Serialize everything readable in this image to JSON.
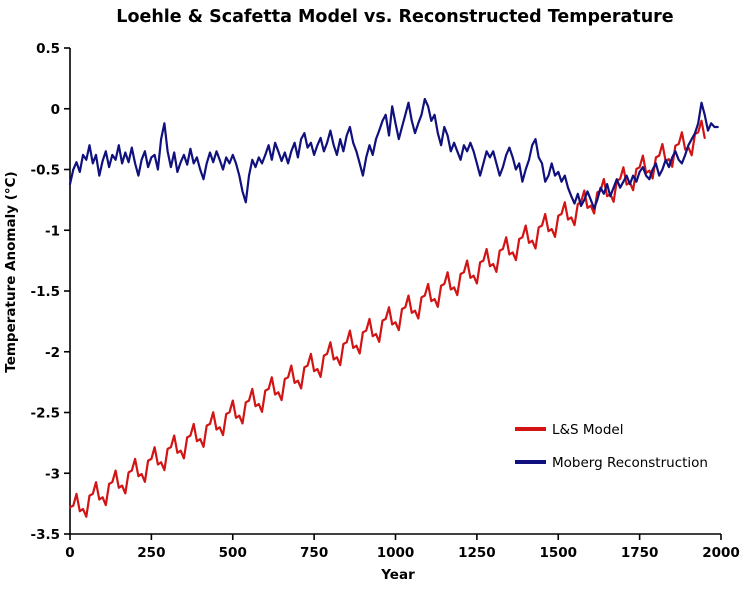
{
  "chart_data": {
    "type": "line",
    "title": "Loehle & Scafetta Model vs. Reconstructed Temperature",
    "xlabel": "Year",
    "ylabel": "Temperature Anomaly (°C)",
    "xlim": [
      0,
      2000
    ],
    "ylim": [
      -3.5,
      0.5
    ],
    "grid": false,
    "background": "#ffffff",
    "axis_color": "#000000",
    "xticks": [
      {
        "v": 0,
        "label": "0"
      },
      {
        "v": 250,
        "label": "250"
      },
      {
        "v": 500,
        "label": "500"
      },
      {
        "v": 750,
        "label": "750"
      },
      {
        "v": 1000,
        "label": "1000"
      },
      {
        "v": 1250,
        "label": "1250"
      },
      {
        "v": 1500,
        "label": "1500"
      },
      {
        "v": 1750,
        "label": "1750"
      },
      {
        "v": 2000,
        "label": "2000"
      }
    ],
    "yticks": [
      {
        "v": 0.5,
        "label": "0.5"
      },
      {
        "v": 0,
        "label": "0"
      },
      {
        "v": -0.5,
        "label": "-0.5"
      },
      {
        "v": -1,
        "label": "-1"
      },
      {
        "v": -1.5,
        "label": "-1.5"
      },
      {
        "v": -2,
        "label": "-2"
      },
      {
        "v": -2.5,
        "label": "-2.5"
      },
      {
        "v": -3,
        "label": "-3"
      },
      {
        "v": -3.5,
        "label": "-3.5"
      }
    ],
    "legend": {
      "position": "right-center"
    },
    "series": [
      {
        "name": "L&S Model",
        "color": "#d21414",
        "x_start": 0,
        "x_step": 10,
        "values": [
          -3.28,
          -3.266,
          -3.17,
          -3.312,
          -3.294,
          -3.358,
          -3.184,
          -3.17,
          -3.074,
          -3.216,
          -3.198,
          -3.262,
          -3.088,
          -3.074,
          -2.978,
          -3.12,
          -3.102,
          -3.166,
          -2.992,
          -2.978,
          -2.882,
          -3.024,
          -3.006,
          -3.07,
          -2.896,
          -2.882,
          -2.786,
          -2.928,
          -2.91,
          -2.974,
          -2.8,
          -2.786,
          -2.69,
          -2.832,
          -2.814,
          -2.878,
          -2.704,
          -2.69,
          -2.594,
          -2.736,
          -2.718,
          -2.782,
          -2.608,
          -2.594,
          -2.498,
          -2.64,
          -2.622,
          -2.686,
          -2.512,
          -2.498,
          -2.402,
          -2.544,
          -2.526,
          -2.59,
          -2.416,
          -2.402,
          -2.306,
          -2.448,
          -2.43,
          -2.494,
          -2.32,
          -2.306,
          -2.21,
          -2.352,
          -2.334,
          -2.398,
          -2.224,
          -2.21,
          -2.114,
          -2.256,
          -2.238,
          -2.302,
          -2.128,
          -2.114,
          -2.018,
          -2.16,
          -2.142,
          -2.206,
          -2.032,
          -2.018,
          -1.922,
          -2.064,
          -2.046,
          -2.11,
          -1.936,
          -1.922,
          -1.826,
          -1.968,
          -1.95,
          -2.014,
          -1.84,
          -1.826,
          -1.73,
          -1.872,
          -1.854,
          -1.918,
          -1.744,
          -1.73,
          -1.634,
          -1.776,
          -1.758,
          -1.822,
          -1.648,
          -1.634,
          -1.538,
          -1.68,
          -1.662,
          -1.726,
          -1.552,
          -1.538,
          -1.442,
          -1.584,
          -1.566,
          -1.63,
          -1.456,
          -1.442,
          -1.346,
          -1.488,
          -1.47,
          -1.534,
          -1.36,
          -1.346,
          -1.25,
          -1.392,
          -1.374,
          -1.438,
          -1.264,
          -1.25,
          -1.154,
          -1.296,
          -1.278,
          -1.342,
          -1.168,
          -1.154,
          -1.058,
          -1.2,
          -1.182,
          -1.246,
          -1.072,
          -1.058,
          -0.962,
          -1.104,
          -1.086,
          -1.15,
          -0.976,
          -0.962,
          -0.866,
          -1.008,
          -0.99,
          -1.054,
          -0.88,
          -0.866,
          -0.77,
          -0.912,
          -0.894,
          -0.958,
          -0.784,
          -0.77,
          -0.674,
          -0.816,
          -0.798,
          -0.862,
          -0.688,
          -0.674,
          -0.578,
          -0.72,
          -0.702,
          -0.766,
          -0.592,
          -0.578,
          -0.482,
          -0.624,
          -0.606,
          -0.67,
          -0.496,
          -0.482,
          -0.386,
          -0.528,
          -0.51,
          -0.574,
          -0.4,
          -0.386,
          -0.29,
          -0.432,
          -0.414,
          -0.478,
          -0.304,
          -0.29,
          -0.194,
          -0.336,
          -0.318,
          -0.382,
          -0.208,
          -0.194,
          -0.098,
          -0.24
        ]
      },
      {
        "name": "Moberg Reconstruction",
        "color": "#10107e",
        "x_start": 0,
        "x_step": 10,
        "values": [
          -0.62,
          -0.5,
          -0.44,
          -0.52,
          -0.38,
          -0.42,
          -0.3,
          -0.45,
          -0.38,
          -0.55,
          -0.43,
          -0.35,
          -0.48,
          -0.38,
          -0.42,
          -0.3,
          -0.45,
          -0.36,
          -0.44,
          -0.32,
          -0.45,
          -0.55,
          -0.42,
          -0.35,
          -0.48,
          -0.4,
          -0.38,
          -0.5,
          -0.25,
          -0.12,
          -0.35,
          -0.48,
          -0.36,
          -0.52,
          -0.44,
          -0.38,
          -0.46,
          -0.33,
          -0.45,
          -0.4,
          -0.5,
          -0.58,
          -0.45,
          -0.36,
          -0.44,
          -0.35,
          -0.42,
          -0.5,
          -0.4,
          -0.45,
          -0.38,
          -0.45,
          -0.55,
          -0.68,
          -0.77,
          -0.55,
          -0.42,
          -0.48,
          -0.4,
          -0.45,
          -0.38,
          -0.3,
          -0.42,
          -0.28,
          -0.35,
          -0.43,
          -0.36,
          -0.45,
          -0.35,
          -0.28,
          -0.4,
          -0.25,
          -0.2,
          -0.32,
          -0.28,
          -0.38,
          -0.3,
          -0.24,
          -0.35,
          -0.28,
          -0.18,
          -0.3,
          -0.38,
          -0.25,
          -0.35,
          -0.22,
          -0.15,
          -0.28,
          -0.35,
          -0.45,
          -0.55,
          -0.4,
          -0.3,
          -0.38,
          -0.25,
          -0.18,
          -0.1,
          -0.05,
          -0.22,
          0.02,
          -0.12,
          -0.25,
          -0.15,
          -0.05,
          0.05,
          -0.1,
          -0.2,
          -0.12,
          -0.05,
          0.08,
          0.02,
          -0.1,
          -0.05,
          -0.2,
          -0.3,
          -0.15,
          -0.22,
          -0.35,
          -0.28,
          -0.35,
          -0.42,
          -0.3,
          -0.35,
          -0.28,
          -0.35,
          -0.45,
          -0.55,
          -0.45,
          -0.35,
          -0.4,
          -0.35,
          -0.45,
          -0.55,
          -0.48,
          -0.38,
          -0.32,
          -0.4,
          -0.5,
          -0.45,
          -0.6,
          -0.5,
          -0.42,
          -0.3,
          -0.25,
          -0.4,
          -0.45,
          -0.6,
          -0.55,
          -0.45,
          -0.55,
          -0.52,
          -0.6,
          -0.55,
          -0.65,
          -0.72,
          -0.78,
          -0.7,
          -0.8,
          -0.75,
          -0.68,
          -0.75,
          -0.82,
          -0.75,
          -0.65,
          -0.7,
          -0.62,
          -0.72,
          -0.65,
          -0.58,
          -0.65,
          -0.6,
          -0.55,
          -0.62,
          -0.55,
          -0.6,
          -0.52,
          -0.48,
          -0.55,
          -0.58,
          -0.5,
          -0.45,
          -0.55,
          -0.5,
          -0.42,
          -0.48,
          -0.4,
          -0.35,
          -0.42,
          -0.45,
          -0.38,
          -0.3,
          -0.25,
          -0.2,
          -0.12,
          0.05,
          -0.05,
          -0.18,
          -0.12,
          -0.15,
          -0.15
        ]
      }
    ]
  }
}
